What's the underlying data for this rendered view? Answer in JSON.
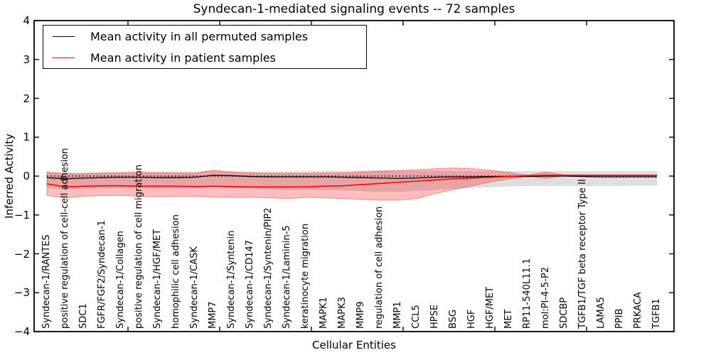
{
  "chart_data": {
    "type": "line",
    "title": "Syndecan-1-mediated signaling events -- 72 samples",
    "xlabel": "Cellular Entities",
    "ylabel": "Inferred Activity",
    "ylim": [
      -4,
      4
    ],
    "grid": false,
    "legend_position": "upper left",
    "zero_line": true,
    "y_ticks": [
      4,
      3,
      2,
      1,
      0,
      -1,
      -2,
      -3,
      -4
    ],
    "y_tick_labels": [
      "4",
      "3",
      "2",
      "1",
      "0",
      "−1",
      "−2",
      "−3",
      "−4"
    ],
    "categories": [
      "Syndecan-1/RANTES",
      "positive regulation of cell-cell adhesion",
      "SDC1",
      "FGFR/FGF2/Syndecan-1",
      "Syndecan-1/Collagen",
      "positive regulation of cell migration",
      "Syndecan-1/HGF/MET",
      "homophilic cell adhesion",
      "Syndecan-1/CASK",
      "MMP7",
      "Syndecan-1/Syntenin",
      "Syndecan-1/CD147",
      "Syndecan-1/Syntenin/PIP2",
      "Syndecan-1/Laminin-5",
      "keratinocyte migration",
      "MAPK1",
      "MAPK3",
      "MMP9",
      "regulation of cell adhesion",
      "MMP1",
      "CCL5",
      "HPSE",
      "BSG",
      "HGF",
      "HGF/MET",
      "MET",
      "RP11-540L11.1",
      "mol:PI-4-5-P2",
      "SDCBP",
      "TGFB1/TGF beta receptor Type II",
      "LAMA5",
      "PPIB",
      "PRKACA",
      "TGFB1"
    ],
    "series": [
      {
        "name": "Mean activity in all permuted samples",
        "color": "#000000",
        "line_width": 1.3,
        "values": [
          -0.04,
          -0.07,
          -0.05,
          -0.04,
          -0.03,
          -0.03,
          -0.04,
          -0.04,
          -0.03,
          0.02,
          0.01,
          -0.01,
          -0.02,
          -0.02,
          -0.02,
          -0.02,
          -0.03,
          -0.04,
          -0.05,
          -0.06,
          -0.05,
          -0.03,
          -0.02,
          -0.02,
          -0.01,
          -0.01,
          -0.01,
          0.0,
          0.0,
          -0.01,
          -0.02,
          -0.02,
          -0.02,
          -0.02
        ],
        "band": {
          "name": "permuted-std-band",
          "color": "rgba(0,0,0,0.13)",
          "edge_color": "rgba(0,0,0,0.06)",
          "upper": [
            0.1,
            0.08,
            0.09,
            0.1,
            0.11,
            0.12,
            0.11,
            0.11,
            0.11,
            0.14,
            0.12,
            0.11,
            0.11,
            0.11,
            0.12,
            0.12,
            0.13,
            0.14,
            0.15,
            0.14,
            0.13,
            0.13,
            0.12,
            0.12,
            0.12,
            0.12,
            0.12,
            0.12,
            0.12,
            0.12,
            0.12,
            0.12,
            0.12,
            0.12
          ],
          "lower": [
            -0.3,
            -0.34,
            -0.32,
            -0.3,
            -0.29,
            -0.3,
            -0.31,
            -0.3,
            -0.3,
            -0.28,
            -0.3,
            -0.32,
            -0.33,
            -0.35,
            -0.34,
            -0.35,
            -0.36,
            -0.38,
            -0.4,
            -0.4,
            -0.38,
            -0.35,
            -0.32,
            -0.3,
            -0.28,
            -0.26,
            -0.25,
            -0.25,
            -0.25,
            -0.25,
            -0.25,
            -0.25,
            -0.24,
            -0.24
          ]
        }
      },
      {
        "name": "Mean activity in patient samples",
        "color": "#ff0000",
        "line_width": 1.6,
        "values": [
          -0.2,
          -0.28,
          -0.26,
          -0.25,
          -0.25,
          -0.26,
          -0.26,
          -0.26,
          -0.27,
          -0.26,
          -0.27,
          -0.28,
          -0.28,
          -0.28,
          -0.28,
          -0.26,
          -0.25,
          -0.22,
          -0.19,
          -0.16,
          -0.13,
          -0.1,
          -0.07,
          -0.05,
          -0.03,
          -0.01,
          0.01,
          0.02,
          0.02,
          0.02,
          0.02,
          0.02,
          0.02,
          0.02
        ],
        "band": {
          "name": "patient-std-band",
          "color": "rgba(255,0,0,0.26)",
          "edge_color": "rgba(255,0,0,0.38)",
          "upper": [
            0.1,
            0.06,
            0.06,
            0.07,
            0.08,
            0.09,
            0.08,
            0.08,
            0.07,
            0.15,
            0.1,
            0.08,
            0.07,
            0.07,
            0.07,
            0.08,
            0.08,
            0.1,
            0.12,
            0.14,
            0.16,
            0.19,
            0.21,
            0.19,
            0.15,
            0.09,
            0.02,
            0.1,
            0.03,
            0.03,
            0.03,
            0.03,
            0.03,
            0.03
          ],
          "lower": [
            -0.5,
            -0.56,
            -0.52,
            -0.5,
            -0.5,
            -0.52,
            -0.53,
            -0.52,
            -0.52,
            -0.54,
            -0.55,
            -0.55,
            -0.56,
            -0.58,
            -0.55,
            -0.56,
            -0.58,
            -0.6,
            -0.62,
            -0.62,
            -0.58,
            -0.45,
            -0.35,
            -0.25,
            -0.15,
            -0.07,
            0.0,
            -0.06,
            0.01,
            0.01,
            0.01,
            0.01,
            0.01,
            0.01
          ]
        }
      }
    ]
  }
}
